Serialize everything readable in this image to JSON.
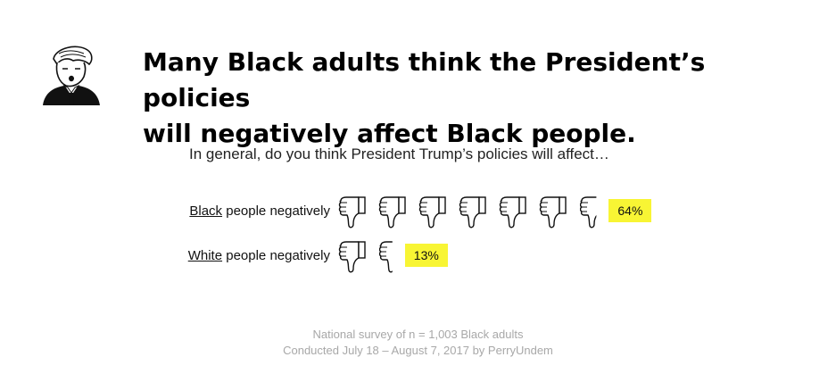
{
  "header": {
    "title_line1": "Many Black adults think the President’s policies",
    "title_line2": "will negatively affect Black people."
  },
  "question": "In general, do you think President Trump’s policies will affect…",
  "chart_data": {
    "type": "pictograph",
    "icon": "thumbs-down-icon",
    "full_icon_value": 10,
    "title": "Many Black adults think the President’s policies will negatively affect Black people.",
    "subtitle": "In general, do you think President Trump’s policies will affect…",
    "categories": [
      "Black people negatively",
      "White people negatively"
    ],
    "rows": [
      {
        "label_underlined": "Black",
        "label_rest": " people negatively",
        "value": 64,
        "value_label": "64%"
      },
      {
        "label_underlined": "White",
        "label_rest": " people negatively",
        "value": 13,
        "value_label": "13%"
      }
    ],
    "badge_color": "#f8f534"
  },
  "footer": {
    "line1": "National survey of n = 1,003 Black adults",
    "line2": "Conducted July 18 – August 7, 2017 by PerryUndem"
  }
}
